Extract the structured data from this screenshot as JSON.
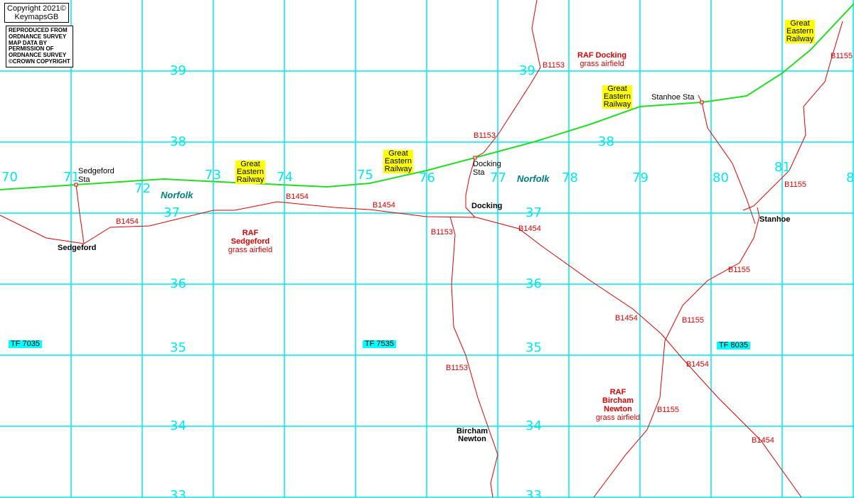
{
  "copyright": {
    "line1": "Copyright 2021©",
    "line2": "KeymapsGB"
  },
  "os_notice": [
    "REPRODUCED FROM",
    "ORDNANCE SURVEY",
    "MAP DATA BY",
    "PERMISSION OF",
    "ORDNANCE SURVEY",
    "©CROWN COPYRIGHT"
  ],
  "colors": {
    "grid": "#00e8f0",
    "road": "#e00000",
    "railway": "#22dd22",
    "railway_label_bg": "#ffff00",
    "tile_label_bg": "#00ffff"
  },
  "eastings": [
    "70",
    "71",
    "72",
    "73",
    "74",
    "75",
    "76",
    "77",
    "78",
    "79",
    "80",
    "81",
    "8"
  ],
  "northings": [
    "39",
    "39",
    "38",
    "38",
    "37",
    "37",
    "36",
    "36",
    "35",
    "35",
    "34",
    "34",
    "33",
    "33"
  ],
  "tiles": [
    "TF 7035",
    "TF 7535",
    "TF 8035"
  ],
  "county": [
    "Norfolk",
    "Norfolk"
  ],
  "railway_labels": [
    "Great Eastern Railway",
    "Great Eastern Railway",
    "Great Eastern Railway",
    "Great Eastern Railway"
  ],
  "stations": {
    "sedgeford": "Sedgeford Sta",
    "docking": "Docking Sta",
    "stanhoe": "Stanhoe Sta"
  },
  "places": {
    "sedgeford": "Sedgeford",
    "docking": "Docking",
    "stanhoe": "Stanhoe",
    "bircham": "Bircham Newton"
  },
  "airfields": [
    {
      "name": "RAF Docking",
      "type": "grass airfield"
    },
    {
      "name": "RAF Sedgeford",
      "type": "grass airfield"
    },
    {
      "name": "RAF Bircham Newton",
      "type": "grass airfield"
    }
  ],
  "roads": {
    "b1153": "B1153",
    "b1454": "B1454",
    "b1155": "B1155"
  }
}
